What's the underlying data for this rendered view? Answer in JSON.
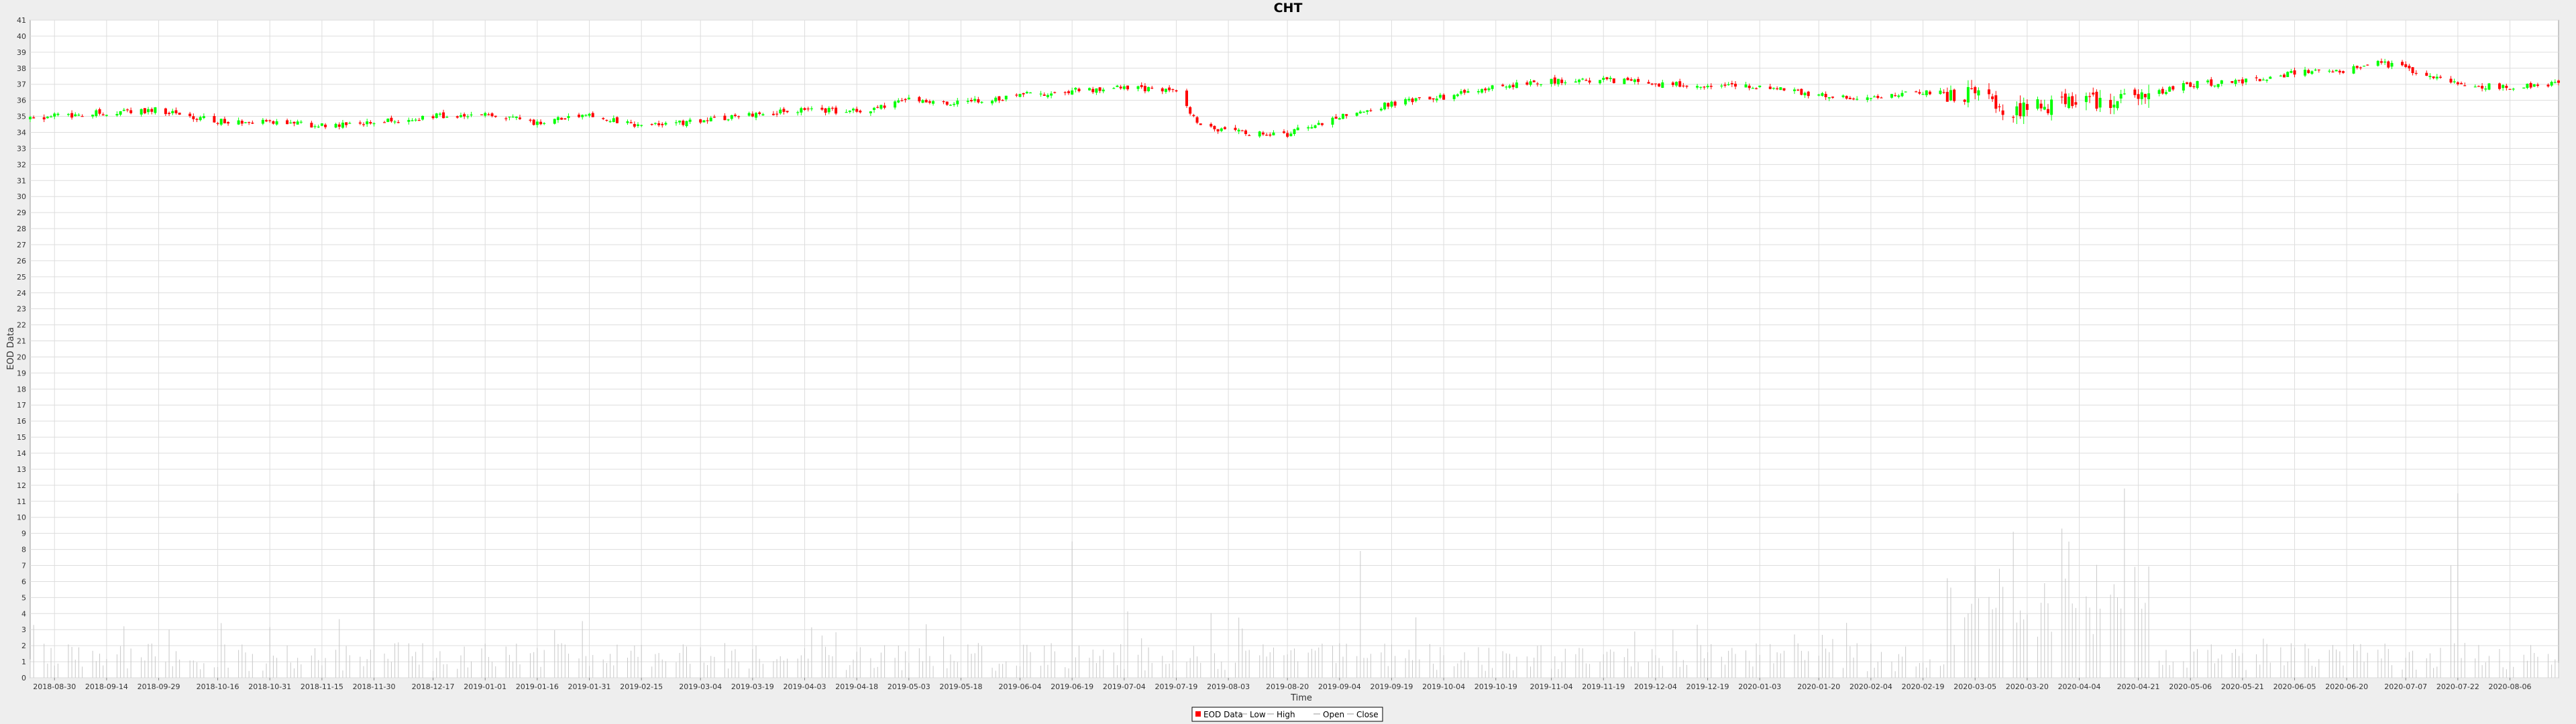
{
  "chart_data": {
    "type": "candlestick",
    "title": "CHT",
    "xlabel": "Time",
    "ylabel": "EOD Data",
    "ylim": [
      0,
      41
    ],
    "y_ticks": [
      0,
      1,
      2,
      3,
      4,
      5,
      6,
      7,
      8,
      9,
      10,
      11,
      12,
      13,
      14,
      15,
      16,
      17,
      18,
      19,
      20,
      21,
      22,
      23,
      24,
      25,
      26,
      27,
      28,
      29,
      30,
      31,
      32,
      33,
      34,
      35,
      36,
      37,
      38,
      39,
      40,
      41
    ],
    "x_ticks": [
      "2018-08-30",
      "2018-09-14",
      "2018-09-29",
      "2018-10-16",
      "2018-10-31",
      "2018-11-15",
      "2018-11-30",
      "2018-12-17",
      "2019-01-01",
      "2019-01-16",
      "2019-01-31",
      "2019-02-15",
      "2019-03-04",
      "2019-03-19",
      "2019-04-03",
      "2019-04-18",
      "2019-05-03",
      "2019-05-18",
      "2019-06-04",
      "2019-06-19",
      "2019-07-04",
      "2019-07-19",
      "2019-08-03",
      "2019-08-20",
      "2019-09-04",
      "2019-09-19",
      "2019-10-04",
      "2019-10-19",
      "2019-11-04",
      "2019-11-19",
      "2019-12-04",
      "2019-12-19",
      "2020-01-03",
      "2020-01-20",
      "2020-02-04",
      "2020-02-19",
      "2020-03-05",
      "2020-03-20",
      "2020-04-04",
      "2020-04-21",
      "2020-05-06",
      "2020-05-21",
      "2020-06-05",
      "2020-06-20",
      "2020-07-07",
      "2020-07-22",
      "2020-08-06"
    ],
    "x_range": [
      "2018-08-23",
      "2020-08-20"
    ],
    "grid": true,
    "legend_position": "bottom",
    "legend": [
      "EOD Data",
      "Low",
      "High",
      "Open",
      "Close"
    ],
    "colors": {
      "up": "#00ff00",
      "down": "#ff0000",
      "volume": "#c8c8c8",
      "grid": "#dddddd",
      "legend_swatch": "#ff0000"
    },
    "price_trend": [
      {
        "date": "2018-08-23",
        "close": 34.9
      },
      {
        "date": "2018-09-10",
        "close": 35.2
      },
      {
        "date": "2018-09-29",
        "close": 35.4
      },
      {
        "date": "2018-10-16",
        "close": 34.7
      },
      {
        "date": "2018-10-31",
        "close": 34.7
      },
      {
        "date": "2018-11-15",
        "close": 34.4
      },
      {
        "date": "2018-11-30",
        "close": 34.6
      },
      {
        "date": "2018-12-17",
        "close": 35.0
      },
      {
        "date": "2019-01-01",
        "close": 35.2
      },
      {
        "date": "2019-01-16",
        "close": 34.6
      },
      {
        "date": "2019-01-31",
        "close": 35.1
      },
      {
        "date": "2019-02-15",
        "close": 34.4
      },
      {
        "date": "2019-03-04",
        "close": 34.7
      },
      {
        "date": "2019-03-19",
        "close": 35.1
      },
      {
        "date": "2019-04-03",
        "close": 35.4
      },
      {
        "date": "2019-04-18",
        "close": 35.3
      },
      {
        "date": "2019-05-03",
        "close": 36.0
      },
      {
        "date": "2019-05-18",
        "close": 35.8
      },
      {
        "date": "2019-06-04",
        "close": 36.3
      },
      {
        "date": "2019-06-19",
        "close": 36.6
      },
      {
        "date": "2019-07-04",
        "close": 36.8
      },
      {
        "date": "2019-07-19",
        "close": 36.5
      },
      {
        "date": "2019-07-25",
        "close": 34.7
      },
      {
        "date": "2019-08-03",
        "close": 34.0
      },
      {
        "date": "2019-08-20",
        "close": 33.9
      },
      {
        "date": "2019-09-04",
        "close": 35.0
      },
      {
        "date": "2019-09-19",
        "close": 35.8
      },
      {
        "date": "2019-10-04",
        "close": 36.2
      },
      {
        "date": "2019-10-19",
        "close": 36.8
      },
      {
        "date": "2019-11-04",
        "close": 37.2
      },
      {
        "date": "2019-11-19",
        "close": 37.3
      },
      {
        "date": "2019-12-04",
        "close": 37.0
      },
      {
        "date": "2019-12-19",
        "close": 37.0
      },
      {
        "date": "2020-01-03",
        "close": 36.9
      },
      {
        "date": "2020-01-20",
        "close": 36.3
      },
      {
        "date": "2020-02-04",
        "close": 36.1
      },
      {
        "date": "2020-02-19",
        "close": 36.5
      },
      {
        "date": "2020-03-05",
        "close": 36.3
      },
      {
        "date": "2020-03-13",
        "close": 35.4
      },
      {
        "date": "2020-03-20",
        "close": 35.6
      },
      {
        "date": "2020-04-04",
        "close": 35.8
      },
      {
        "date": "2020-04-21",
        "close": 36.2
      },
      {
        "date": "2020-05-06",
        "close": 37.0
      },
      {
        "date": "2020-05-21",
        "close": 37.2
      },
      {
        "date": "2020-06-05",
        "close": 37.7
      },
      {
        "date": "2020-06-20",
        "close": 37.9
      },
      {
        "date": "2020-06-27",
        "close": 38.4
      },
      {
        "date": "2020-07-07",
        "close": 38.0
      },
      {
        "date": "2020-07-22",
        "close": 37.0
      },
      {
        "date": "2020-08-06",
        "close": 36.8
      },
      {
        "date": "2020-08-20",
        "close": 37.0
      }
    ],
    "volume_spikes": [
      {
        "date": "2018-11-30",
        "value": 12.3
      },
      {
        "date": "2019-06-19",
        "value": 8.5
      },
      {
        "date": "2019-09-10",
        "value": 7.9
      },
      {
        "date": "2020-03-16",
        "value": 9.1
      },
      {
        "date": "2020-03-30",
        "value": 9.3
      },
      {
        "date": "2020-04-17",
        "value": 11.8
      },
      {
        "date": "2020-07-20",
        "value": 7.0
      },
      {
        "date": "2020-07-22",
        "value": 11.5
      }
    ]
  }
}
